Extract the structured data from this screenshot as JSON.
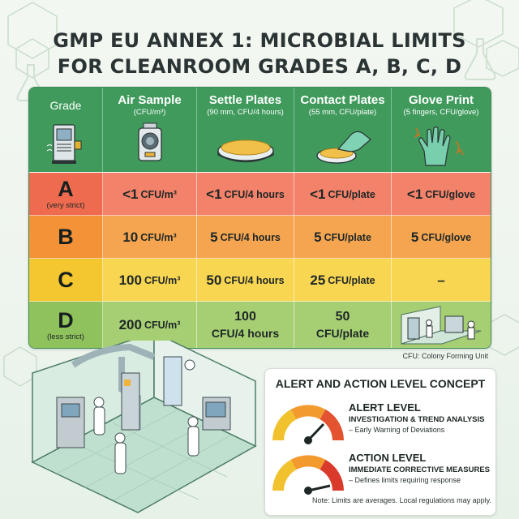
{
  "title": {
    "line1": "GMP EU ANNEX 1: MICROBIAL LIMITS",
    "line2": "FOR CLEANROOM GRADES A, B, C, D"
  },
  "table": {
    "headers": {
      "grade": "Grade",
      "air": {
        "label": "Air Sample",
        "sub": "(CFU/m³)"
      },
      "settle": {
        "label": "Settle Plates",
        "sub": "(90 mm, CFU/4 hours)"
      },
      "contact": {
        "label": "Contact Plates",
        "sub": "(55 mm, CFU/plate)"
      },
      "glove": {
        "label": "Glove Print",
        "sub": "(5 fingers, CFU/glove)"
      }
    },
    "rows": {
      "a": {
        "grade": "A",
        "note": "(very strict)",
        "air": "<1",
        "air_unit": "CFU/m³",
        "settle": "<1",
        "settle_unit": "CFU/4 hours",
        "contact": "<1",
        "contact_unit": "CFU/plate",
        "glove": "<1",
        "glove_unit": "CFU/glove"
      },
      "b": {
        "grade": "B",
        "air": "10",
        "air_unit": "CFU/m³",
        "settle": "5",
        "settle_unit": "CFU/4 hours",
        "contact": "5",
        "contact_unit": "CFU/plate",
        "glove": "5",
        "glove_unit": "CFU/glove"
      },
      "c": {
        "grade": "C",
        "air": "100",
        "air_unit": "CFU/m³",
        "settle": "50",
        "settle_unit": "CFU/4 hours",
        "contact": "25",
        "contact_unit": "CFU/plate",
        "glove": "–"
      },
      "d": {
        "grade": "D",
        "note": "(less strict)",
        "air": "200",
        "air_unit": "CFU/m³",
        "settle": "100",
        "settle_unit": "CFU/4 hours",
        "contact": "50",
        "contact_unit": "CFU/plate"
      }
    },
    "row_colors": {
      "a": [
        "#ef6b4f",
        "#f3826a"
      ],
      "b": [
        "#f39237",
        "#f5a550"
      ],
      "c": [
        "#f4c62f",
        "#f8d652"
      ],
      "d": [
        "#8fc25c",
        "#a6cf73"
      ]
    }
  },
  "footnote": "CFU: Colony Forming Unit",
  "concept": {
    "title": "ALERT AND ACTION LEVEL CONCEPT",
    "alert": {
      "heading": "ALERT LEVEL",
      "sub": "INVESTIGATION & TREND ANALYSIS",
      "desc": "– Early Warning of Deviations"
    },
    "action": {
      "heading": "ACTION LEVEL",
      "sub": "IMMEDIATE CORRECTIVE MEASURES",
      "desc": "– Defines limits requiring response"
    }
  },
  "note": "Note: Limits are averages. Local regulations may apply.",
  "icons": [
    "air-sampler-icon",
    "handheld-sampler-icon",
    "petri-dish-icon",
    "contact-plate-icon",
    "glove-icon",
    "cleanroom-illustration",
    "gauge-icon"
  ]
}
